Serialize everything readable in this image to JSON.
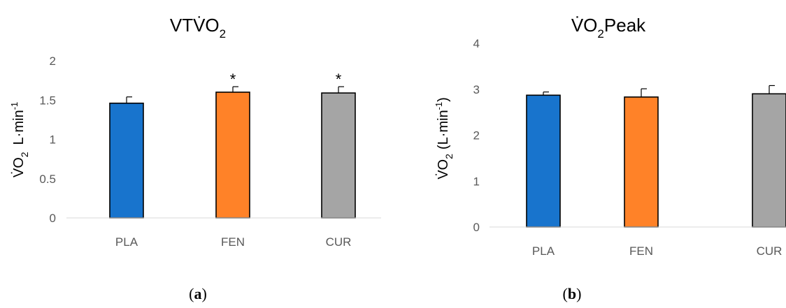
{
  "chart_data": [
    {
      "type": "bar",
      "panel_label": "a",
      "title": "VTV̇O",
      "title_sub": "2",
      "ylabel_main": "V̇O",
      "ylabel_sub": "2",
      "ylabel_unit": "L·min",
      "ylabel_sup": "-1",
      "categories": [
        "PLA",
        "FEN",
        "CUR"
      ],
      "values": [
        1.46,
        1.6,
        1.59
      ],
      "errors": [
        0.08,
        0.07,
        0.08
      ],
      "significance": [
        "",
        "*",
        "*"
      ],
      "colors": [
        "#1874cd",
        "#ff8228",
        "#a5a5a5"
      ],
      "yticks": [
        "0",
        "0.5",
        "1",
        "1.5",
        "2"
      ],
      "ylim": [
        0,
        2
      ]
    },
    {
      "type": "bar",
      "panel_label": "b",
      "title": "V̇O",
      "title_sub": "2",
      "title_suffix": "Peak",
      "ylabel_main": "V̇O",
      "ylabel_sub": "2",
      "ylabel_unit": "(L·min",
      "ylabel_sup": "-1",
      "ylabel_close": ")",
      "categories": [
        "PLA",
        "FEN",
        "CUR"
      ],
      "values": [
        2.87,
        2.83,
        2.9
      ],
      "errors": [
        0.07,
        0.18,
        0.18
      ],
      "significance": [
        "",
        "",
        ""
      ],
      "colors": [
        "#1874cd",
        "#ff8228",
        "#a5a5a5"
      ],
      "yticks": [
        "0",
        "1",
        "2",
        "3",
        "4"
      ],
      "ylim": [
        0,
        4
      ]
    }
  ]
}
